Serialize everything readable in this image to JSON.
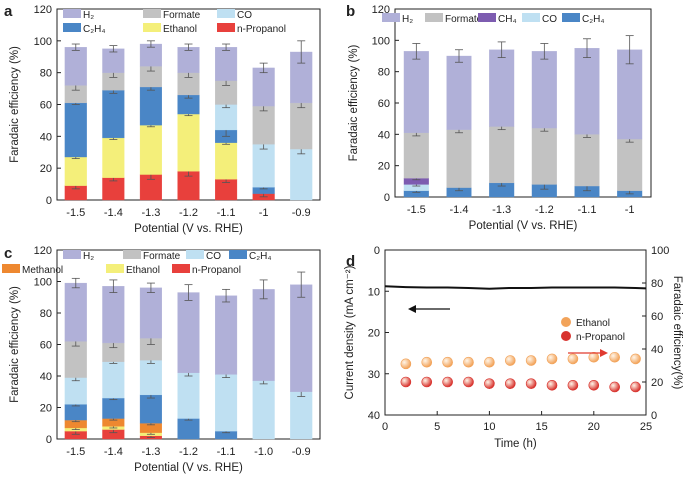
{
  "chart_data": [
    {
      "panel": "a",
      "type": "bar",
      "stacked": true,
      "categories": [
        "-1.5",
        "-1.4",
        "-1.3",
        "-1.2",
        "-1.1",
        "-1",
        "-0.9"
      ],
      "xlabel": "Potential (V vs. RHE)",
      "ylabel": "Faradaic efficiency (%)",
      "ylim": [
        0,
        120
      ],
      "yticks": [
        "0",
        "20",
        "40",
        "60",
        "80",
        "100",
        "120"
      ],
      "legend_position": "top",
      "series": [
        {
          "name": "n-Propanol",
          "color": "#e8403c",
          "values": [
            9,
            14,
            16,
            18,
            13,
            4,
            0
          ],
          "err": [
            2,
            2,
            3,
            3,
            2,
            2,
            0
          ]
        },
        {
          "name": "Ethanol",
          "color": "#f4ef7a",
          "values": [
            18,
            25,
            31,
            36,
            23,
            0,
            0
          ],
          "err": [
            1,
            1,
            1,
            1,
            1,
            0,
            0
          ]
        },
        {
          "name": "C₂H₄",
          "color": "#4a86c6",
          "values": [
            34,
            30,
            24,
            12,
            8,
            4,
            0
          ],
          "err": [
            1,
            2,
            2,
            2,
            4,
            1,
            0
          ]
        },
        {
          "name": "CO",
          "color": "#bfe0f2",
          "values": [
            0,
            0,
            0,
            0,
            16,
            27,
            32
          ],
          "err": [
            0,
            0,
            0,
            0,
            2,
            3,
            3
          ]
        },
        {
          "name": "Formate",
          "color": "#c2c2c2",
          "values": [
            11,
            11,
            13,
            14,
            15,
            24,
            29
          ],
          "err": [
            3,
            3,
            3,
            3,
            3,
            3,
            3
          ]
        },
        {
          "name": "H₂",
          "color": "#b0b0d8",
          "values": [
            24,
            15,
            14,
            16,
            21,
            24,
            32
          ],
          "err": [
            2,
            2,
            2,
            2,
            2,
            3,
            7
          ]
        }
      ]
    },
    {
      "panel": "b",
      "type": "bar",
      "stacked": true,
      "categories": [
        "-1.5",
        "-1.4",
        "-1.3",
        "-1.2",
        "-1.1",
        "-1"
      ],
      "xlabel": "Potential (V vs. RHE)",
      "ylabel": "Faradaic efficiency (%)",
      "ylim": [
        0,
        120
      ],
      "yticks": [
        "0",
        "20",
        "40",
        "60",
        "80",
        "100",
        "120"
      ],
      "legend_position": "top",
      "series": [
        {
          "name": "C₂H₄",
          "color": "#4a86c6",
          "values": [
            4,
            6,
            9,
            8,
            7,
            4
          ],
          "err": [
            1,
            2,
            2,
            3,
            3,
            2
          ]
        },
        {
          "name": "CO",
          "color": "#bfe0f2",
          "values": [
            4,
            0,
            0,
            0,
            0,
            0
          ],
          "err": [
            1,
            0,
            0,
            0,
            0,
            0
          ]
        },
        {
          "name": "CH₄",
          "color": "#7d5cb0",
          "values": [
            4,
            0,
            0,
            0,
            0,
            0
          ],
          "err": [
            1,
            0,
            0,
            0,
            0,
            0
          ]
        },
        {
          "name": "Formate",
          "color": "#c2c2c2",
          "values": [
            29,
            37,
            36,
            36,
            33,
            33
          ],
          "err": [
            2,
            2,
            2,
            2,
            2,
            2
          ]
        },
        {
          "name": "H₂",
          "color": "#b0b0d8",
          "values": [
            52,
            47,
            49,
            49,
            55,
            57
          ],
          "err": [
            5,
            4,
            5,
            5,
            6,
            9
          ]
        }
      ]
    },
    {
      "panel": "c",
      "type": "bar",
      "stacked": true,
      "categories": [
        "-1.5",
        "-1.4",
        "-1.3",
        "-1.2",
        "-1.1",
        "-1.0",
        "-0.9"
      ],
      "xlabel": "Potential (V vs. RHE)",
      "ylabel": "Faradaic efficiency (%)",
      "ylim": [
        0,
        120
      ],
      "yticks": [
        "0",
        "20",
        "40",
        "60",
        "80",
        "100",
        "120"
      ],
      "legend_position": "top",
      "series": [
        {
          "name": "n-Propanol",
          "color": "#e8403c",
          "values": [
            5,
            6,
            2,
            0,
            0,
            0,
            0
          ],
          "err": [
            2,
            2,
            1,
            0,
            0,
            0,
            0
          ]
        },
        {
          "name": "Ethanol",
          "color": "#f4ef7a",
          "values": [
            2,
            2,
            2,
            0,
            0,
            0,
            0
          ],
          "err": [
            1,
            1,
            1,
            0,
            0,
            0,
            0
          ]
        },
        {
          "name": "Methanol",
          "color": "#ee8830",
          "values": [
            5,
            5,
            6,
            0,
            0,
            0,
            0
          ],
          "err": [
            1,
            1,
            1,
            0,
            0,
            0,
            0
          ]
        },
        {
          "name": "C₂H₄",
          "color": "#4a86c6",
          "values": [
            10,
            13,
            18,
            13,
            5,
            0,
            0
          ],
          "err": [
            1,
            1,
            2,
            1,
            1,
            0,
            0
          ]
        },
        {
          "name": "CO",
          "color": "#bfe0f2",
          "values": [
            17,
            23,
            22,
            29,
            36,
            37,
            30
          ],
          "err": [
            2,
            1,
            2,
            2,
            2,
            2,
            3
          ]
        },
        {
          "name": "Formate",
          "color": "#c2c2c2",
          "values": [
            23,
            12,
            14,
            0,
            0,
            0,
            0
          ],
          "err": [
            3,
            3,
            4,
            0,
            0,
            0,
            0
          ]
        },
        {
          "name": "H₂",
          "color": "#b0b0d8",
          "values": [
            37,
            36,
            32,
            51,
            50,
            58,
            68
          ],
          "err": [
            3,
            4,
            3,
            5,
            4,
            6,
            8
          ]
        }
      ]
    },
    {
      "panel": "d",
      "type": "scatter",
      "xlabel": "Time (h)",
      "ylabel": "Current density (mA cm⁻²)",
      "ylabel_right": "Faradaic efficiency(%)",
      "xlim": [
        0,
        25
      ],
      "xticks": [
        "0",
        "5",
        "10",
        "15",
        "20",
        "25"
      ],
      "ylim_left_inverted": [
        0,
        40
      ],
      "yticks_left": [
        "0",
        "10",
        "20",
        "30",
        "40"
      ],
      "ylim_right": [
        0,
        100
      ],
      "yticks_right": [
        "0",
        "20",
        "40",
        "60",
        "80",
        "100"
      ],
      "legend_position": "right",
      "current_density": {
        "x": [
          0,
          2,
          4,
          6,
          8,
          10,
          12,
          14,
          16,
          18,
          20,
          22,
          24,
          25
        ],
        "y": [
          8.8,
          9.0,
          9.1,
          9.1,
          9.2,
          9.4,
          9.2,
          9.2,
          9.1,
          9.1,
          9.1,
          9.1,
          9.2,
          9.3
        ]
      },
      "series": [
        {
          "name": "Ethanol",
          "color": "#f2a35a",
          "x": [
            2,
            4,
            6,
            8,
            10,
            12,
            14,
            16,
            18,
            20,
            22,
            24
          ],
          "y": [
            31,
            32,
            32,
            32,
            32,
            33,
            33,
            34,
            34,
            35,
            35,
            34
          ]
        },
        {
          "name": "n-Propanol",
          "color": "#d8332e",
          "x": [
            2,
            4,
            6,
            8,
            10,
            12,
            14,
            16,
            18,
            20,
            22,
            24
          ],
          "y": [
            20,
            20,
            20,
            20,
            19,
            19,
            19,
            18,
            18,
            18,
            17,
            17
          ]
        }
      ]
    }
  ]
}
